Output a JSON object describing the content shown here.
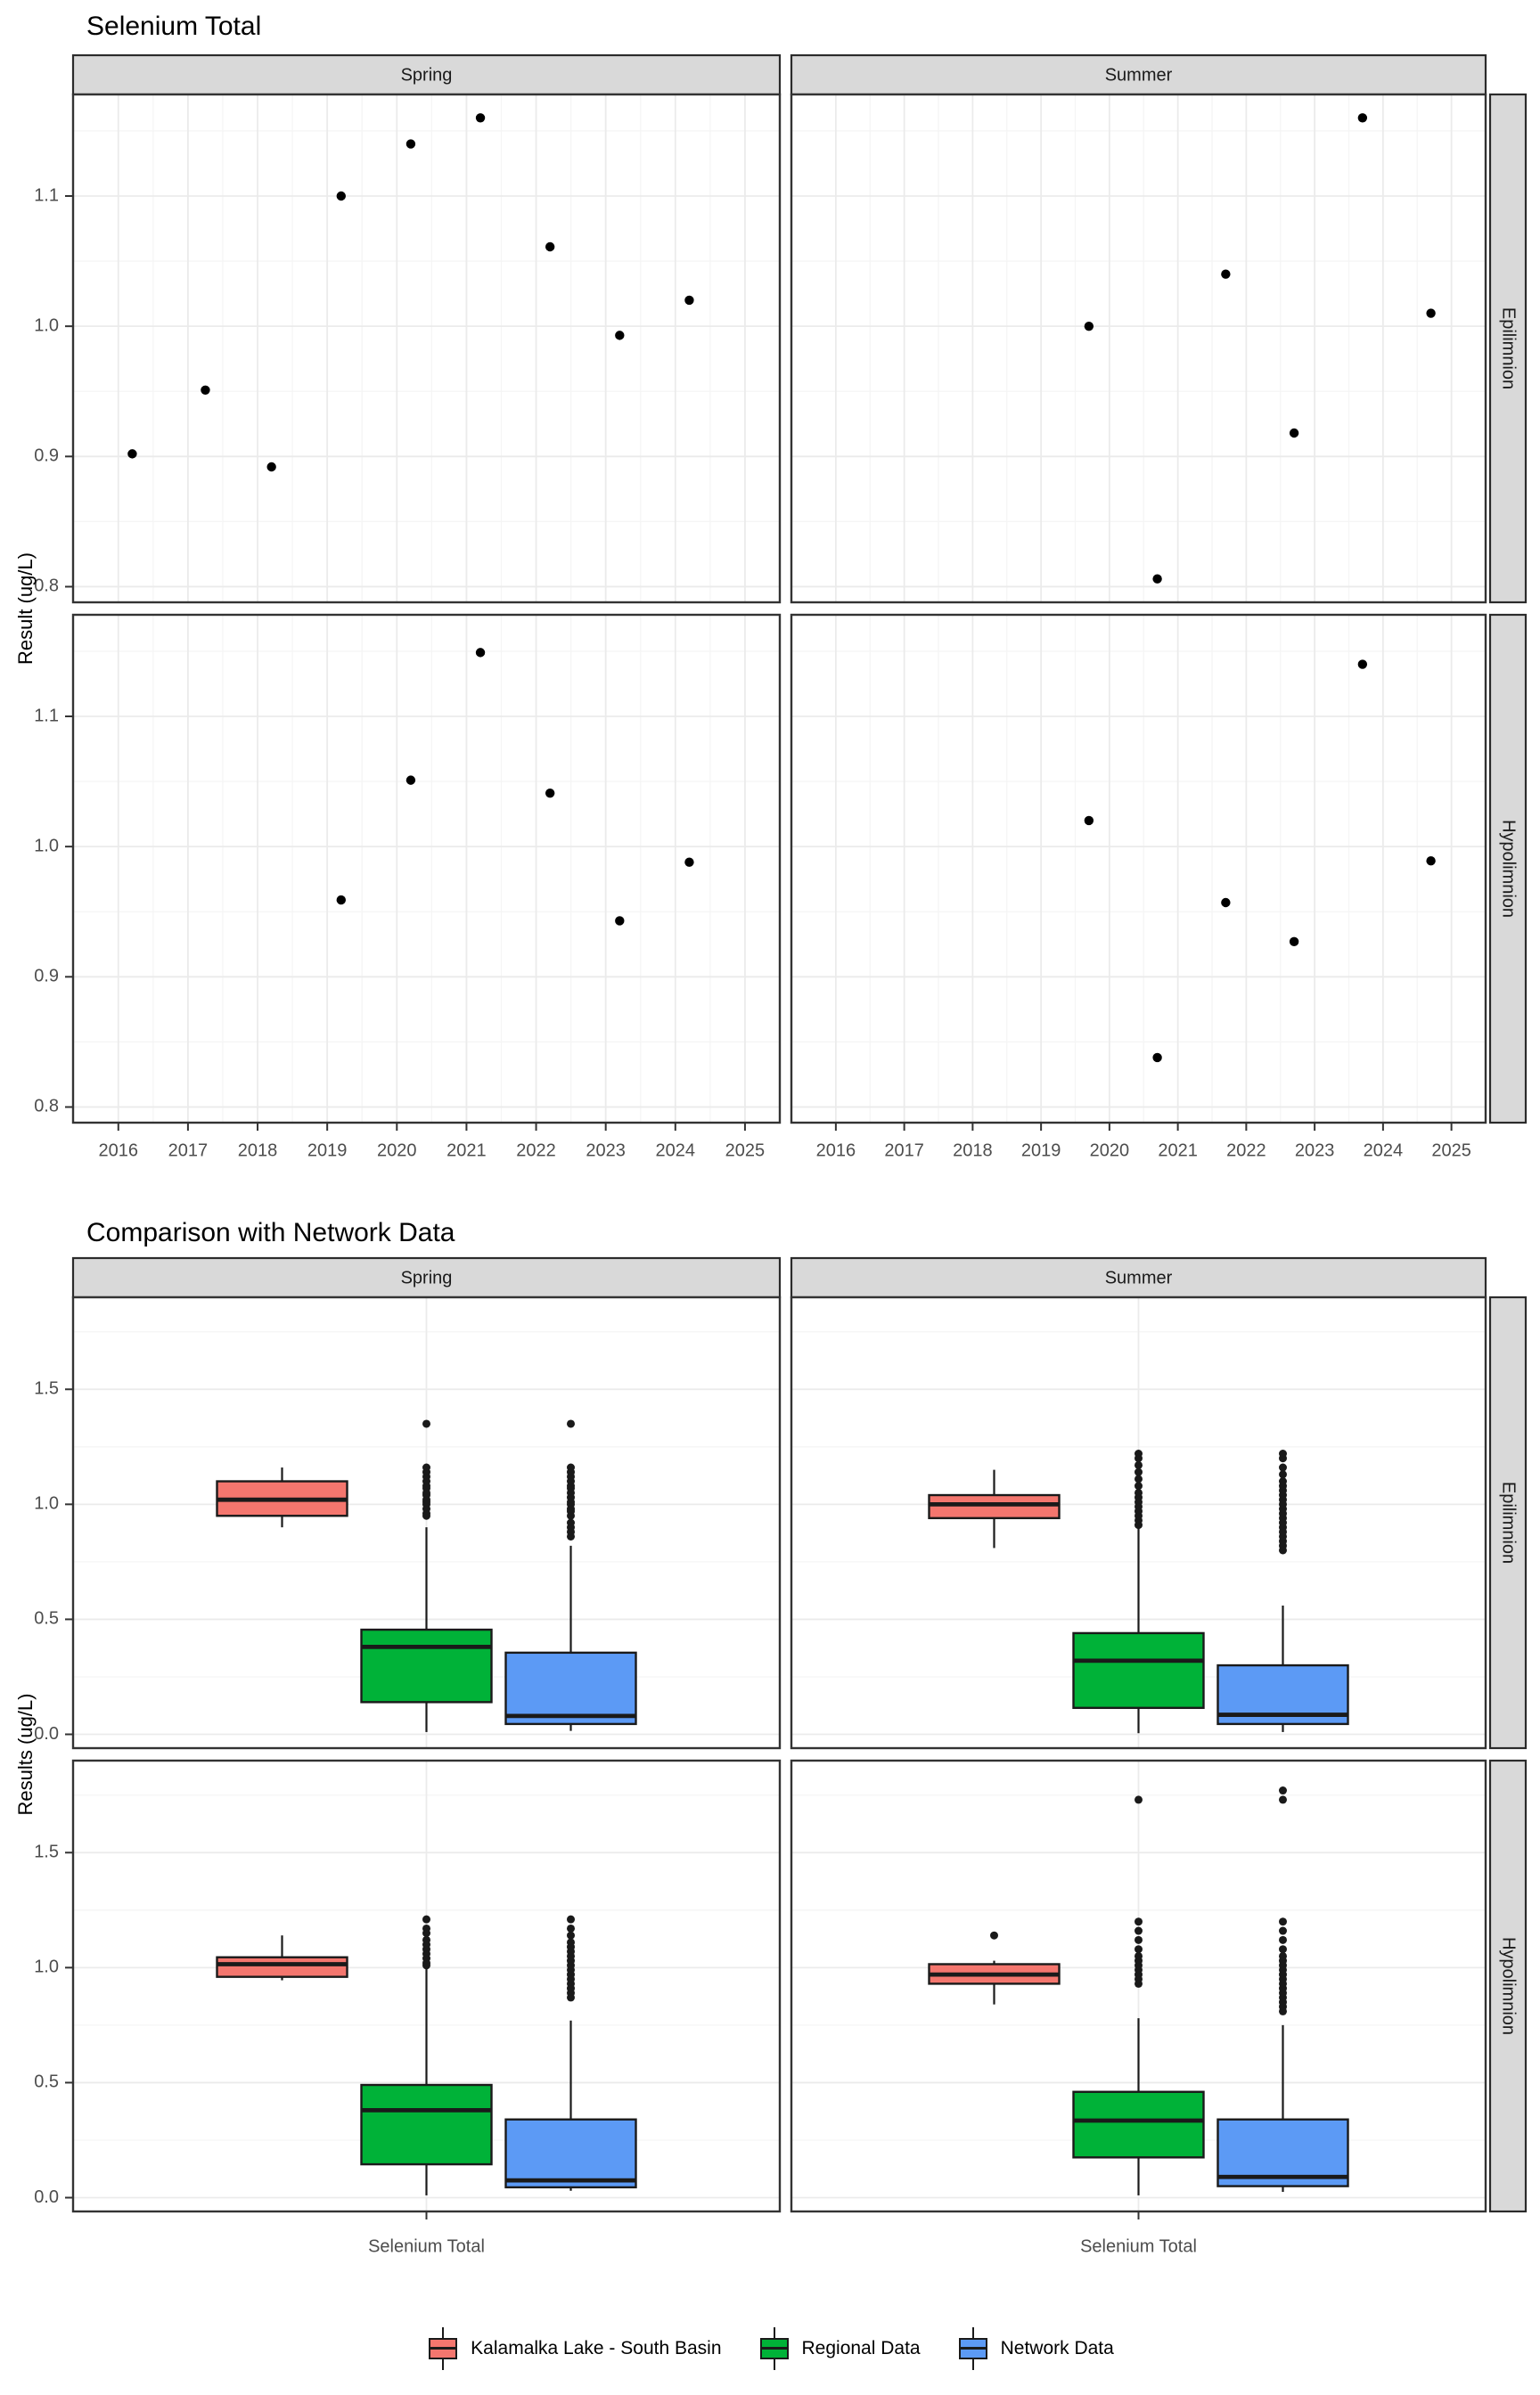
{
  "colors": {
    "background": "#ffffff",
    "strip_bg": "#d9d9d9",
    "strip_border": "#2b2b2b",
    "panel_border": "#333333",
    "grid_major": "#ebebeb",
    "grid_minor": "#f5f5f5",
    "axis_text": "#4d4d4d",
    "axis_tick": "#333333",
    "point": "#000000",
    "box_outline": "#1a1a1a"
  },
  "chart_data": [
    {
      "type": "scatter",
      "title": "Selenium Total",
      "ylabel": "Result (ug/L)",
      "facet_columns": [
        "Spring",
        "Summer"
      ],
      "facet_rows": [
        "Epilimnion",
        "Hypolimnion"
      ],
      "x_ticks": [
        2016,
        2017,
        2018,
        2019,
        2020,
        2021,
        2022,
        2023,
        2024,
        2025
      ],
      "x_range": [
        2015.35,
        2025.5
      ],
      "y_ticks": [
        0.8,
        0.9,
        1.0,
        1.1
      ],
      "y_minor": [
        0.85,
        0.95,
        1.05,
        1.15
      ],
      "y_range": [
        0.788,
        1.178
      ],
      "grid": true,
      "points": {
        "Spring.Epilimnion": [
          [
            2016.2,
            0.902
          ],
          [
            2017.25,
            0.951
          ],
          [
            2018.2,
            0.892
          ],
          [
            2019.2,
            1.1
          ],
          [
            2020.2,
            1.14
          ],
          [
            2021.2,
            1.16
          ],
          [
            2022.2,
            1.061
          ],
          [
            2023.2,
            0.993
          ],
          [
            2024.2,
            1.02
          ]
        ],
        "Summer.Epilimnion": [
          [
            2019.7,
            1.0
          ],
          [
            2020.7,
            0.806
          ],
          [
            2021.7,
            1.04
          ],
          [
            2022.7,
            0.918
          ],
          [
            2023.7,
            1.16
          ],
          [
            2024.7,
            1.01
          ]
        ],
        "Spring.Hypolimnion": [
          [
            2019.2,
            0.959
          ],
          [
            2020.2,
            1.051
          ],
          [
            2021.2,
            1.149
          ],
          [
            2022.2,
            1.041
          ],
          [
            2023.2,
            0.943
          ],
          [
            2024.2,
            0.988
          ]
        ],
        "Summer.Hypolimnion": [
          [
            2019.7,
            1.02
          ],
          [
            2020.7,
            0.838
          ],
          [
            2021.7,
            0.957
          ],
          [
            2022.7,
            0.927
          ],
          [
            2023.7,
            1.14
          ],
          [
            2024.7,
            0.989
          ]
        ]
      }
    },
    {
      "type": "boxplot",
      "title": "Comparison with Network Data",
      "ylabel": "Results (ug/L)",
      "x_category": "Selenium Total",
      "facet_columns": [
        "Spring",
        "Summer"
      ],
      "facet_rows": [
        "Epilimnion",
        "Hypolimnion"
      ],
      "y_ticks": [
        0.0,
        0.5,
        1.0,
        1.5
      ],
      "y_minor": [
        0.25,
        0.75,
        1.25,
        1.75
      ],
      "y_range": [
        -0.06,
        1.9
      ],
      "grid": true,
      "legend_position": "bottom",
      "groups": [
        "Kalamalka Lake - South Basin",
        "Regional Data",
        "Network Data"
      ],
      "group_colors": [
        "#f4766e",
        "#00b238",
        "#5c9af5"
      ],
      "boxes": {
        "Spring.Epilimnion": [
          {
            "whisker_low": 0.9,
            "q1": 0.95,
            "median": 1.02,
            "q3": 1.1,
            "whisker_high": 1.16,
            "outliers": []
          },
          {
            "whisker_low": 0.01,
            "q1": 0.14,
            "median": 0.38,
            "q3": 0.455,
            "whisker_high": 0.9,
            "outliers": [
              0.95,
              0.96,
              0.98,
              1.0,
              1.01,
              1.02,
              1.04,
              1.05,
              1.07,
              1.08,
              1.1,
              1.12,
              1.14,
              1.16,
              1.35
            ]
          },
          {
            "whisker_low": 0.015,
            "q1": 0.045,
            "median": 0.08,
            "q3": 0.355,
            "whisker_high": 0.82,
            "outliers": [
              0.86,
              0.88,
              0.9,
              0.92,
              0.95,
              0.97,
              0.98,
              1.0,
              1.01,
              1.03,
              1.05,
              1.07,
              1.08,
              1.1,
              1.12,
              1.14,
              1.16,
              1.35
            ]
          }
        ],
        "Summer.Epilimnion": [
          {
            "whisker_low": 0.81,
            "q1": 0.94,
            "median": 1.0,
            "q3": 1.04,
            "whisker_high": 1.15,
            "outliers": []
          },
          {
            "whisker_low": 0.005,
            "q1": 0.115,
            "median": 0.32,
            "q3": 0.44,
            "whisker_high": 0.94,
            "outliers": [
              0.91,
              0.93,
              0.95,
              0.97,
              0.99,
              1.01,
              1.03,
              1.05,
              1.08,
              1.11,
              1.14,
              1.17,
              1.2,
              1.22
            ]
          },
          {
            "whisker_low": 0.01,
            "q1": 0.045,
            "median": 0.085,
            "q3": 0.3,
            "whisker_high": 0.56,
            "outliers": [
              0.8,
              0.82,
              0.84,
              0.86,
              0.88,
              0.9,
              0.92,
              0.94,
              0.96,
              0.98,
              1.0,
              1.02,
              1.04,
              1.06,
              1.08,
              1.1,
              1.13,
              1.16,
              1.2,
              1.22
            ]
          }
        ],
        "Spring.Hypolimnion": [
          {
            "whisker_low": 0.945,
            "q1": 0.96,
            "median": 1.015,
            "q3": 1.045,
            "whisker_high": 1.14,
            "outliers": []
          },
          {
            "whisker_low": 0.01,
            "q1": 0.145,
            "median": 0.38,
            "q3": 0.49,
            "whisker_high": 1.0,
            "outliers": [
              1.01,
              1.02,
              1.04,
              1.06,
              1.08,
              1.1,
              1.12,
              1.15,
              1.17,
              1.21
            ]
          },
          {
            "whisker_low": 0.03,
            "q1": 0.045,
            "median": 0.075,
            "q3": 0.34,
            "whisker_high": 0.77,
            "outliers": [
              0.87,
              0.89,
              0.91,
              0.93,
              0.95,
              0.97,
              0.99,
              1.01,
              1.03,
              1.05,
              1.07,
              1.09,
              1.11,
              1.14,
              1.17,
              1.21
            ]
          }
        ],
        "Summer.Hypolimnion": [
          {
            "whisker_low": 0.84,
            "q1": 0.93,
            "median": 0.97,
            "q3": 1.015,
            "whisker_high": 1.03,
            "outliers": [
              1.14
            ]
          },
          {
            "whisker_low": 0.01,
            "q1": 0.175,
            "median": 0.335,
            "q3": 0.46,
            "whisker_high": 0.78,
            "outliers": [
              0.93,
              0.95,
              0.97,
              0.99,
              1.01,
              1.03,
              1.05,
              1.08,
              1.12,
              1.16,
              1.2,
              1.73
            ]
          },
          {
            "whisker_low": 0.025,
            "q1": 0.05,
            "median": 0.09,
            "q3": 0.34,
            "whisker_high": 0.75,
            "outliers": [
              0.81,
              0.83,
              0.85,
              0.87,
              0.89,
              0.91,
              0.93,
              0.95,
              0.97,
              0.99,
              1.01,
              1.03,
              1.05,
              1.08,
              1.12,
              1.16,
              1.2,
              1.73,
              1.77
            ]
          }
        ]
      }
    }
  ]
}
